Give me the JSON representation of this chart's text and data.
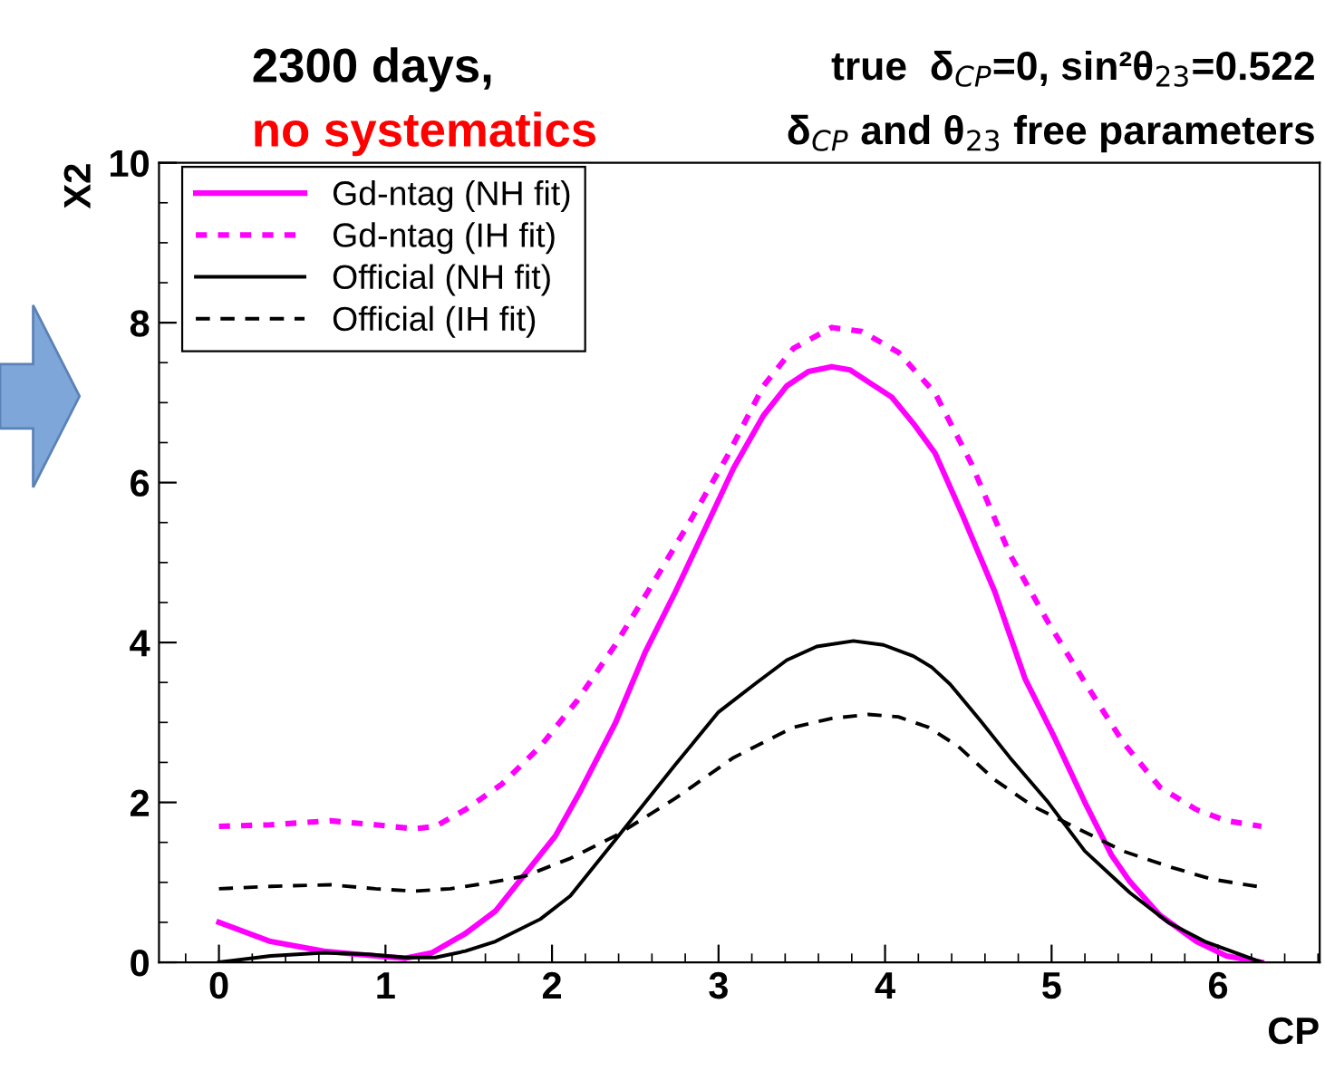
{
  "chart_data": {
    "type": "line",
    "title": "2300 days,",
    "subtitle": "no systematics",
    "xlabel": "CP",
    "ylabel": "X2",
    "annotations": [
      "true  δ$_{CP}$=0, sin²θ$_{23}$=0.522",
      "δ$_{CP}$ and θ$_{23}$ free parameters"
    ],
    "xlim": [
      -0.36,
      6.61
    ],
    "ylim": [
      0,
      10
    ],
    "xticks": [
      0,
      1,
      2,
      3,
      4,
      5,
      6
    ],
    "yticks": [
      0,
      2,
      4,
      6,
      8,
      10
    ],
    "grid": false,
    "legend": "top left",
    "marker": "none",
    "series": [
      {
        "name": "Gd-ntag (NH fit)",
        "color": "#ff00ff",
        "line_style": "solid",
        "x": [
          0,
          0.31,
          0.63,
          0.94,
          1.12,
          1.28,
          1.48,
          1.66,
          1.84,
          2.02,
          2.17,
          2.38,
          2.56,
          2.74,
          2.91,
          3.09,
          3.27,
          3.41,
          3.54,
          3.68,
          3.79,
          3.9,
          4.04,
          4.17,
          4.3,
          4.46,
          4.66,
          4.84,
          5.02,
          5.2,
          5.36,
          5.47,
          5.65,
          5.87,
          6.05,
          6.26
        ],
        "values": [
          0.5,
          0.26,
          0.14,
          0.08,
          0.05,
          0.12,
          0.36,
          0.64,
          1.11,
          1.58,
          2.14,
          2.99,
          3.88,
          4.63,
          5.38,
          6.18,
          6.84,
          7.21,
          7.39,
          7.45,
          7.41,
          7.26,
          7.07,
          6.74,
          6.37,
          5.62,
          4.63,
          3.55,
          2.8,
          2.0,
          1.34,
          1.01,
          0.59,
          0.26,
          0.08,
          0
        ]
      },
      {
        "name": "Gd-ntag (IH fit)",
        "color": "#ff00ff",
        "line_style": "dotted",
        "x": [
          0,
          0.31,
          0.67,
          0.94,
          1.17,
          1.3,
          1.48,
          1.7,
          1.93,
          2.15,
          2.38,
          2.6,
          2.83,
          3.05,
          3.27,
          3.45,
          3.68,
          3.86,
          4.08,
          4.3,
          4.52,
          4.75,
          4.98,
          5.2,
          5.43,
          5.65,
          5.87,
          6.05,
          6.26
        ],
        "values": [
          1.7,
          1.72,
          1.77,
          1.72,
          1.67,
          1.7,
          1.91,
          2.23,
          2.7,
          3.27,
          3.97,
          4.72,
          5.52,
          6.32,
          7.21,
          7.68,
          7.94,
          7.89,
          7.63,
          7.12,
          6.23,
          5.1,
          4.25,
          3.5,
          2.75,
          2.19,
          1.91,
          1.77,
          1.7
        ]
      },
      {
        "name": "Official (NH fit)",
        "color": "#000000",
        "line_style": "solid",
        "x": [
          0,
          0.31,
          0.63,
          0.9,
          1.12,
          1.3,
          1.48,
          1.66,
          1.93,
          2.11,
          2.38,
          2.74,
          3.0,
          3.23,
          3.41,
          3.59,
          3.81,
          3.99,
          4.17,
          4.28,
          4.39,
          4.57,
          4.75,
          4.98,
          5.2,
          5.47,
          5.7,
          5.92,
          6.26
        ],
        "values": [
          0,
          0.08,
          0.12,
          0.1,
          0.06,
          0.06,
          0.14,
          0.26,
          0.54,
          0.83,
          1.53,
          2.47,
          3.13,
          3.5,
          3.78,
          3.95,
          4.02,
          3.97,
          3.83,
          3.69,
          3.48,
          3.03,
          2.56,
          2.0,
          1.39,
          0.87,
          0.5,
          0.26,
          0
        ]
      },
      {
        "name": "Official (IH fit)",
        "color": "#000000",
        "line_style": "dashed",
        "x": [
          0,
          0.31,
          0.67,
          0.94,
          1.17,
          1.39,
          1.61,
          1.84,
          2.11,
          2.38,
          2.74,
          3.09,
          3.45,
          3.68,
          3.9,
          4.08,
          4.26,
          4.44,
          4.66,
          4.89,
          5.16,
          5.43,
          5.7,
          5.96,
          6.26
        ],
        "values": [
          0.92,
          0.95,
          0.97,
          0.92,
          0.89,
          0.92,
          0.99,
          1.08,
          1.3,
          1.58,
          2.05,
          2.56,
          2.94,
          3.05,
          3.1,
          3.07,
          2.94,
          2.7,
          2.28,
          1.95,
          1.67,
          1.39,
          1.2,
          1.04,
          0.94
        ]
      }
    ]
  }
}
